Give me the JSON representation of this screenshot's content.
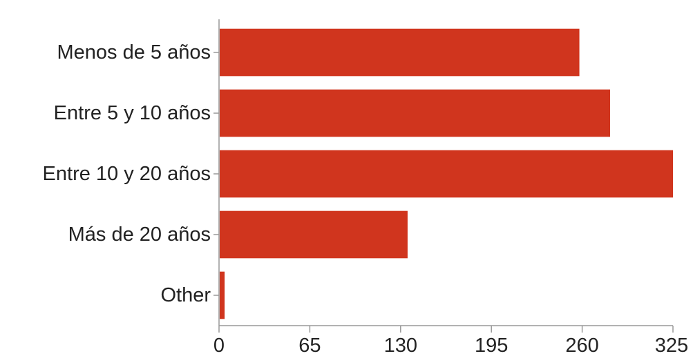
{
  "chart_data": {
    "type": "bar",
    "orientation": "horizontal",
    "categories": [
      "Menos de 5 años",
      "Entre 5 y 10 años",
      "Entre 10 y 20 años",
      "Más de 20 años",
      "Other"
    ],
    "values": [
      258,
      280,
      326,
      135,
      4
    ],
    "xlim": [
      0,
      325
    ],
    "xticks": [
      "0",
      "65",
      "130",
      "195",
      "260",
      "325"
    ],
    "xtick_values": [
      0,
      65,
      130,
      195,
      260,
      325
    ],
    "grid": false,
    "legend": "none",
    "title": "",
    "xlabel": "",
    "ylabel": ""
  },
  "colors": {
    "bar": "#d0351e",
    "axis": "#999999",
    "text": "#222222"
  }
}
